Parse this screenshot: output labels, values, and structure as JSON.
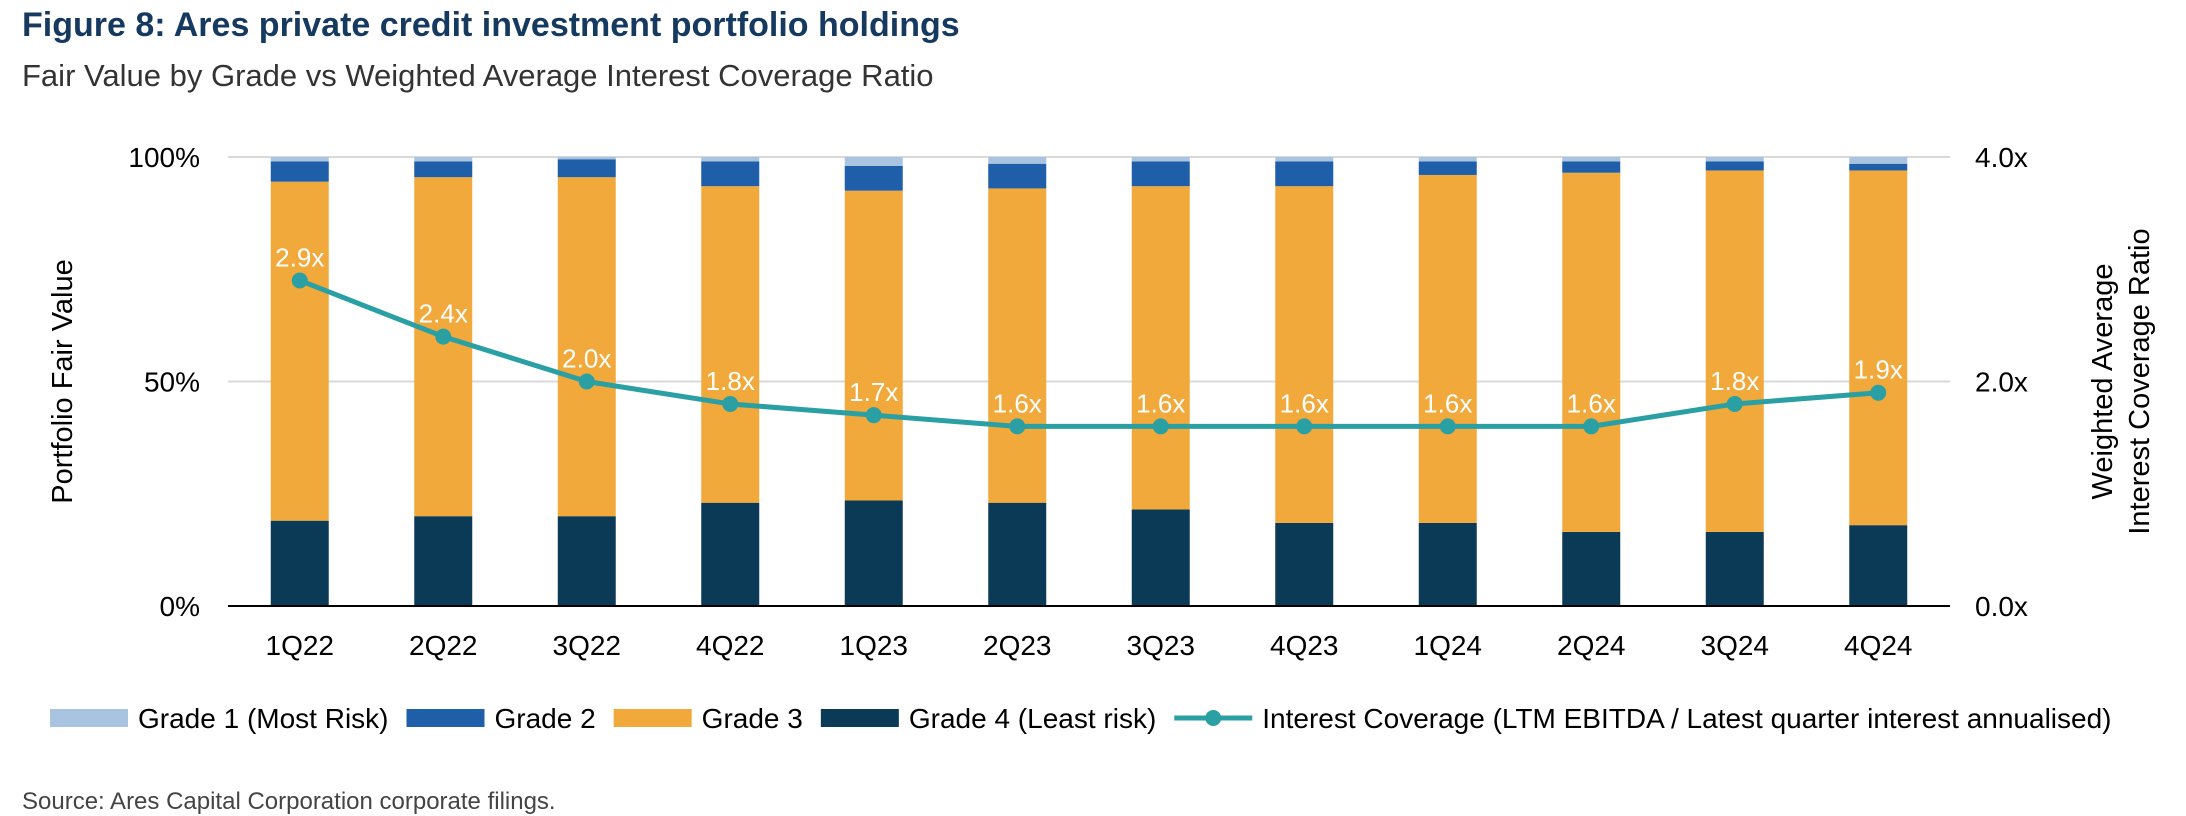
{
  "colors": {
    "title": "#163a5f",
    "grade1": "#a9c4e0",
    "grade2": "#1f5fa9",
    "grade3": "#f2a93b",
    "grade4": "#0b3a56",
    "line": "#2aa0a4",
    "grid": "#d9d9d9"
  },
  "source": "Source: Ares Capital Corporation corporate filings.",
  "chart_data": {
    "type": "bar",
    "stacked": true,
    "title": "Figure 8: Ares private credit investment portfolio holdings",
    "subtitle": "Fair Value by Grade vs Weighted Average Interest Coverage Ratio",
    "ylabel": "Portfolio Fair Value",
    "y2label_lines": [
      "Weighted Average",
      "Interest Coverage Ratio"
    ],
    "ylim": [
      0,
      100
    ],
    "y2lim": [
      0,
      4
    ],
    "y_ticks": [
      "0%",
      "50%",
      "100%"
    ],
    "y2_ticks": [
      "0.0x",
      "2.0x",
      "4.0x"
    ],
    "grid": true,
    "legend_position": "bottom",
    "categories": [
      "1Q22",
      "2Q22",
      "3Q22",
      "4Q22",
      "1Q23",
      "2Q23",
      "3Q23",
      "4Q23",
      "1Q24",
      "2Q24",
      "3Q24",
      "4Q24"
    ],
    "series": [
      {
        "name": "Grade 4 (Least risk)",
        "key": "grade4",
        "values": [
          19,
          20,
          20,
          23,
          23.5,
          23,
          21.5,
          18.5,
          18.5,
          16.5,
          16.5,
          18
        ]
      },
      {
        "name": "Grade 3",
        "key": "grade3",
        "values": [
          75.5,
          75.5,
          75.5,
          70.5,
          69,
          70,
          72,
          75,
          77.5,
          80,
          80.5,
          79
        ]
      },
      {
        "name": "Grade 2",
        "key": "grade2",
        "values": [
          4.5,
          3.5,
          4,
          5.5,
          5.5,
          5.5,
          5.5,
          5.5,
          3,
          2.5,
          2,
          1.5
        ]
      },
      {
        "name": "Grade 1 (Most Risk)",
        "key": "grade1",
        "values": [
          1,
          1,
          0.5,
          1,
          2,
          1.5,
          1,
          1,
          1,
          1,
          1,
          1.5
        ]
      }
    ],
    "line_series": {
      "name": "Interest Coverage (LTM EBITDA / Latest quarter interest annualised)",
      "axis": "right",
      "values": [
        2.9,
        2.4,
        2.0,
        1.8,
        1.7,
        1.6,
        1.6,
        1.6,
        1.6,
        1.6,
        1.8,
        1.9
      ],
      "labels": [
        "2.9x",
        "2.4x",
        "2.0x",
        "1.8x",
        "1.7x",
        "1.6x",
        "1.6x",
        "1.6x",
        "1.6x",
        "1.6x",
        "1.8x",
        "1.9x"
      ]
    },
    "legend": [
      {
        "label": "Grade 1 (Most Risk)",
        "key": "grade1",
        "kind": "bar"
      },
      {
        "label": "Grade 2",
        "key": "grade2",
        "kind": "bar"
      },
      {
        "label": "Grade 3",
        "key": "grade3",
        "kind": "bar"
      },
      {
        "label": "Grade 4 (Least risk)",
        "key": "grade4",
        "kind": "bar"
      },
      {
        "label": "Interest Coverage (LTM EBITDA / Latest quarter interest annualised)",
        "key": "line",
        "kind": "line"
      }
    ]
  }
}
